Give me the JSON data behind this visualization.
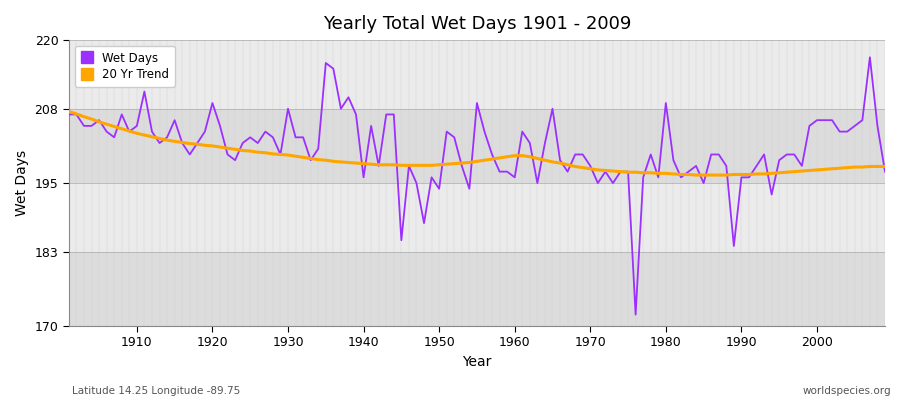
{
  "title": "Yearly Total Wet Days 1901 - 2009",
  "xlabel": "Year",
  "ylabel": "Wet Days",
  "footnote_left": "Latitude 14.25 Longitude -89.75",
  "footnote_right": "worldspecies.org",
  "legend_wet": "Wet Days",
  "legend_trend": "20 Yr Trend",
  "wet_color": "#9B30FF",
  "trend_color": "#FFA500",
  "ylim": [
    170,
    220
  ],
  "yticks": [
    170,
    183,
    195,
    208,
    220
  ],
  "xlim": [
    1901,
    2009
  ],
  "fig_bg": "#FFFFFF",
  "plot_bg_light": "#EBEBEB",
  "plot_bg_dark": "#DCDCDC",
  "years": [
    1901,
    1902,
    1903,
    1904,
    1905,
    1906,
    1907,
    1908,
    1909,
    1910,
    1911,
    1912,
    1913,
    1914,
    1915,
    1916,
    1917,
    1918,
    1919,
    1920,
    1921,
    1922,
    1923,
    1924,
    1925,
    1926,
    1927,
    1928,
    1929,
    1930,
    1931,
    1932,
    1933,
    1934,
    1935,
    1936,
    1937,
    1938,
    1939,
    1940,
    1941,
    1942,
    1943,
    1944,
    1945,
    1946,
    1947,
    1948,
    1949,
    1950,
    1951,
    1952,
    1953,
    1954,
    1955,
    1956,
    1957,
    1958,
    1959,
    1960,
    1961,
    1962,
    1963,
    1964,
    1965,
    1966,
    1967,
    1968,
    1969,
    1970,
    1971,
    1972,
    1973,
    1974,
    1975,
    1976,
    1977,
    1978,
    1979,
    1980,
    1981,
    1982,
    1983,
    1984,
    1985,
    1986,
    1987,
    1988,
    1989,
    1990,
    1991,
    1992,
    1993,
    1994,
    1995,
    1996,
    1997,
    1998,
    1999,
    2000,
    2001,
    2002,
    2003,
    2004,
    2005,
    2006,
    2007,
    2008,
    2009
  ],
  "wet_days": [
    207,
    207,
    205,
    205,
    206,
    204,
    203,
    207,
    204,
    205,
    211,
    204,
    202,
    203,
    206,
    202,
    200,
    202,
    204,
    209,
    205,
    200,
    199,
    202,
    203,
    202,
    204,
    203,
    200,
    208,
    203,
    203,
    199,
    201,
    216,
    215,
    208,
    210,
    207,
    196,
    205,
    198,
    207,
    207,
    185,
    198,
    195,
    188,
    196,
    194,
    204,
    203,
    198,
    194,
    209,
    204,
    200,
    197,
    197,
    196,
    204,
    202,
    195,
    202,
    208,
    199,
    197,
    200,
    200,
    198,
    195,
    197,
    195,
    197,
    197,
    172,
    196,
    200,
    196,
    209,
    199,
    196,
    197,
    198,
    195,
    200,
    200,
    198,
    184,
    196,
    196,
    198,
    200,
    193,
    199,
    200,
    200,
    198,
    205,
    206,
    206,
    206,
    204,
    204,
    205,
    206,
    217,
    205,
    197
  ],
  "trend_vals": [
    207.5,
    207.1,
    206.6,
    206.2,
    205.7,
    205.3,
    204.9,
    204.5,
    204.1,
    203.7,
    203.4,
    203.1,
    202.8,
    202.5,
    202.3,
    202.1,
    201.9,
    201.8,
    201.6,
    201.5,
    201.3,
    201.1,
    200.9,
    200.7,
    200.6,
    200.4,
    200.3,
    200.1,
    200.0,
    199.9,
    199.7,
    199.5,
    199.3,
    199.1,
    199.0,
    198.8,
    198.7,
    198.6,
    198.5,
    198.4,
    198.3,
    198.2,
    198.2,
    198.2,
    198.1,
    198.1,
    198.1,
    198.1,
    198.1,
    198.2,
    198.3,
    198.4,
    198.5,
    198.6,
    198.8,
    199.0,
    199.2,
    199.4,
    199.6,
    199.8,
    199.8,
    199.6,
    199.3,
    199.0,
    198.7,
    198.5,
    198.2,
    197.9,
    197.7,
    197.5,
    197.3,
    197.2,
    197.1,
    197.0,
    196.9,
    196.9,
    196.8,
    196.8,
    196.7,
    196.7,
    196.6,
    196.5,
    196.5,
    196.4,
    196.4,
    196.4,
    196.4,
    196.4,
    196.5,
    196.5,
    196.5,
    196.6,
    196.6,
    196.7,
    196.8,
    196.9,
    197.0,
    197.1,
    197.2,
    197.3,
    197.4,
    197.5,
    197.6,
    197.7,
    197.8,
    197.8,
    197.9,
    197.9,
    197.9
  ]
}
